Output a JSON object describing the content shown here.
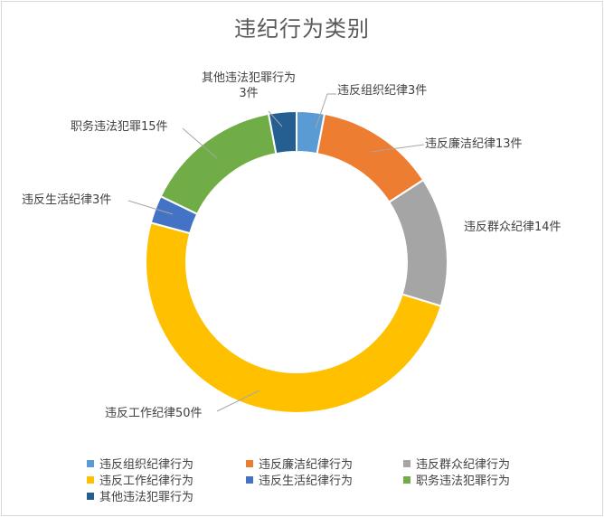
{
  "chart_data": {
    "type": "donut",
    "title": "违纪行为类别",
    "slices": [
      {
        "name": "违反组织纪律行为",
        "value": 3,
        "label": "违反组织纪律3件",
        "color": "#5b9bd5"
      },
      {
        "name": "违反廉洁纪律行为",
        "value": 13,
        "label": "违反廉洁纪律13件",
        "color": "#ed7d31"
      },
      {
        "name": "违反群众纪律行为",
        "value": 14,
        "label": "违反群众纪律14件",
        "color": "#a5a5a5"
      },
      {
        "name": "违反工作纪律行为",
        "value": 50,
        "label": "违反工作纪律50件",
        "color": "#ffc000"
      },
      {
        "name": "违反生活纪律行为",
        "value": 3,
        "label": "违反生活纪律3件",
        "color": "#4472c4"
      },
      {
        "name": "职务违法犯罪行为",
        "value": 15,
        "label": "职务违法犯罪15件",
        "color": "#70ad47"
      },
      {
        "name": "其他违法犯罪行为",
        "value": 3,
        "label_lines": [
          "其他违法犯罪行为",
          "3件"
        ],
        "color": "#255e91"
      }
    ],
    "legend_position": "bottom"
  }
}
